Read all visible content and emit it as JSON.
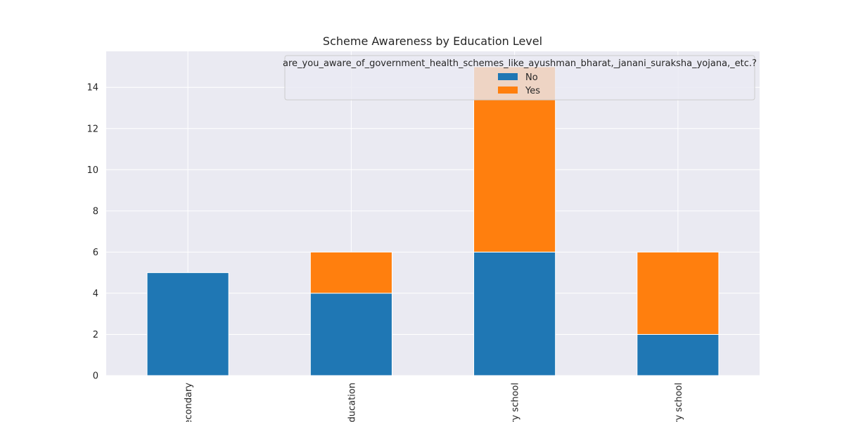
{
  "chart_data": {
    "type": "bar",
    "stacked": true,
    "title": "Scheme Awareness by Education Level",
    "xlabel": "",
    "ylabel": "",
    "categories": [
      "Higher secondary",
      "No formal education",
      "Primary school",
      "Secondary school"
    ],
    "category_labels_visible": [
      "econdary",
      "education",
      "ry school",
      "ry school"
    ],
    "series": [
      {
        "name": "No",
        "color": "#1f77b4",
        "values": [
          5,
          4,
          6,
          2
        ]
      },
      {
        "name": "Yes",
        "color": "#ff7f0e",
        "values": [
          0,
          2,
          9,
          4
        ]
      }
    ],
    "ylim": [
      0,
      15.75
    ],
    "yticks": [
      0,
      2,
      4,
      6,
      8,
      10,
      12,
      14
    ],
    "grid": true,
    "legend": {
      "title": "are_you_aware_of_government_health_schemes_like_ayushman_bharat,_janani_suraksha_yojana,_etc.?",
      "placement": "top-right"
    }
  },
  "colors": {
    "plot_background": "#eaeaf2",
    "grid": "#ffffff",
    "text": "#262626"
  }
}
